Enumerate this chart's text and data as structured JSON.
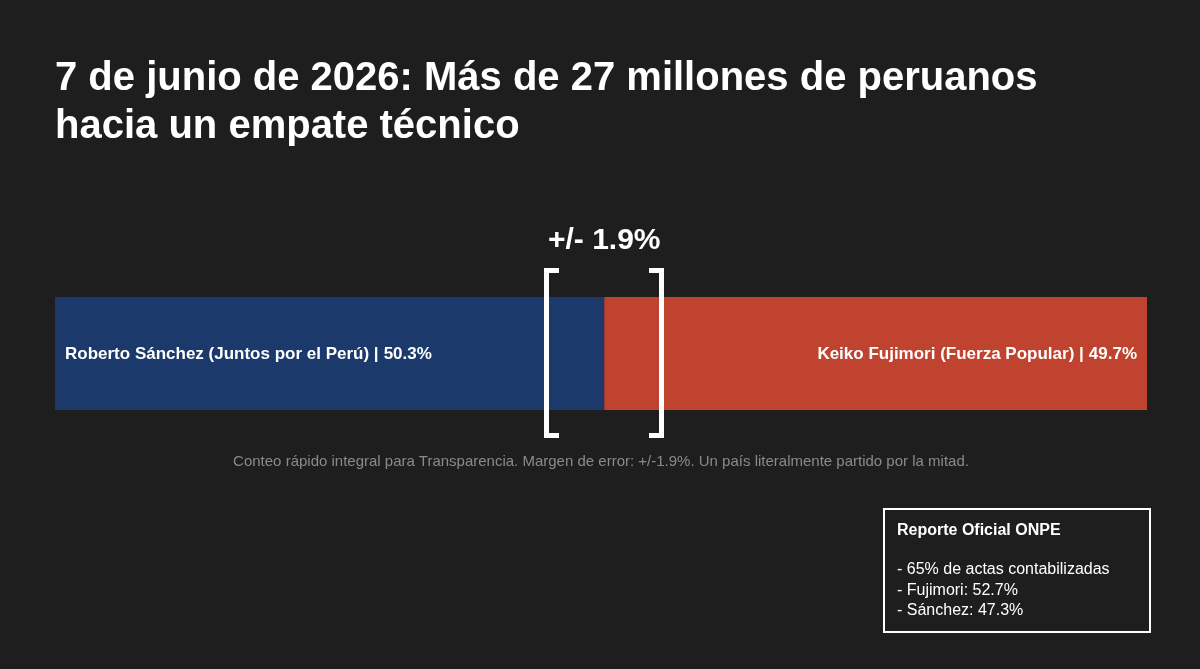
{
  "chart_data": {
    "type": "bar",
    "orientation": "horizontal",
    "stacked": true,
    "title": "7 de junio de 2026: Más de 27 millones de peruanos hacia un empate técnico",
    "categories": [
      null
    ],
    "series": [
      {
        "name": "Roberto Sánchez (Juntos por el Perú) |",
        "color": "#1b3a6b",
        "values": [
          50.3
        ],
        "value_labels": [
          "50.3%"
        ]
      },
      {
        "name": "Keiko Fujimori (Fuerza Popular) |",
        "color": "#c0432f",
        "values": [
          49.7
        ],
        "value_labels": [
          "49.7%"
        ]
      }
    ],
    "annotations": [
      "+/- 1.9%",
      "Conteo rápido integral para Transparencia. Margen de error: +/-1.9%. Un país literalmente partido por la mitad.",
      "Reporte Oficial ONPE",
      "- 65% de actas contabilizadas",
      "- Fujimori: 52.7%",
      "- Sánchez: 47.3%"
    ],
    "tick_labels": false
  }
}
